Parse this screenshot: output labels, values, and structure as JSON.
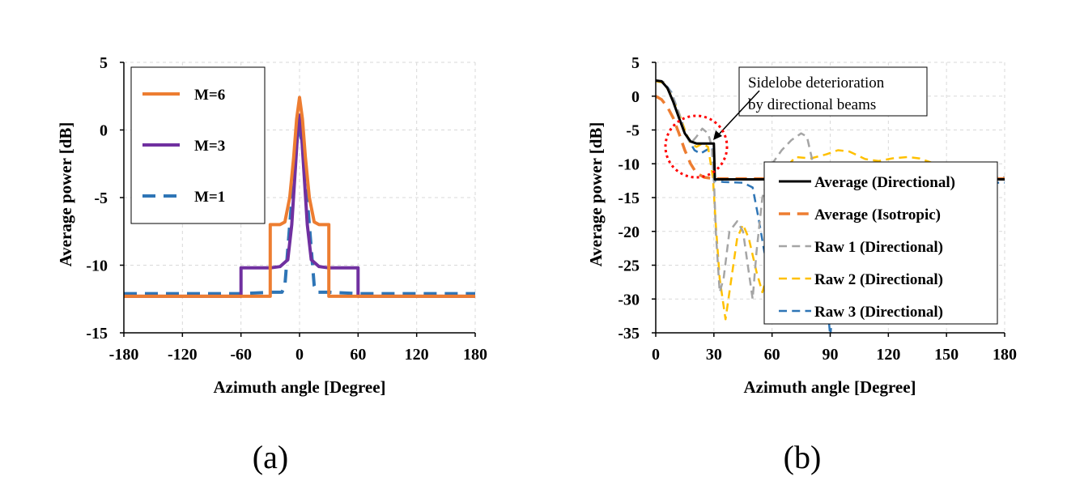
{
  "chart_data": [
    {
      "type": "line",
      "panel_caption": "(a)",
      "xlabel": "Azimuth angle [Degree]",
      "ylabel": "Average power [dB]",
      "xlim": [
        -180,
        180
      ],
      "ylim": [
        -15,
        5
      ],
      "xticks": [
        -180,
        -120,
        -60,
        0,
        60,
        120,
        180
      ],
      "yticks": [
        5,
        0,
        -5,
        -10,
        -15
      ],
      "grid": true,
      "legend_position": "top-left",
      "series": [
        {
          "name": "M=6",
          "color": "#ed7d31",
          "dash": "solid",
          "points": [
            [
              -180,
              -12.3
            ],
            [
              -60,
              -12.3
            ],
            [
              -30,
              -12.3
            ],
            [
              -30,
              -7
            ],
            [
              -20,
              -7
            ],
            [
              -15,
              -6.8
            ],
            [
              -10,
              -5
            ],
            [
              -6,
              -2
            ],
            [
              -3,
              0.8
            ],
            [
              0,
              2.4
            ],
            [
              3,
              0.8
            ],
            [
              6,
              -2
            ],
            [
              10,
              -5
            ],
            [
              15,
              -6.8
            ],
            [
              20,
              -7
            ],
            [
              30,
              -7
            ],
            [
              30,
              -12.3
            ],
            [
              60,
              -12.3
            ],
            [
              180,
              -12.3
            ]
          ]
        },
        {
          "name": "M=3",
          "color": "#7030a0",
          "dash": "solid",
          "points": [
            [
              -180,
              -12.3
            ],
            [
              -60,
              -12.3
            ],
            [
              -60,
              -10.2
            ],
            [
              -30,
              -10.2
            ],
            [
              -20,
              -10.1
            ],
            [
              -12,
              -9.6
            ],
            [
              -8,
              -7
            ],
            [
              -4,
              -2.5
            ],
            [
              -2,
              -0.2
            ],
            [
              0,
              1.1
            ],
            [
              2,
              -0.2
            ],
            [
              4,
              -2.5
            ],
            [
              8,
              -7
            ],
            [
              12,
              -9.6
            ],
            [
              20,
              -10.1
            ],
            [
              30,
              -10.2
            ],
            [
              60,
              -10.2
            ],
            [
              60,
              -12.3
            ],
            [
              180,
              -12.3
            ]
          ]
        },
        {
          "name": "M=1",
          "color": "#2e75b6",
          "dash": "dashed",
          "points": [
            [
              -180,
              -12.1
            ],
            [
              -60,
              -12.1
            ],
            [
              -30,
              -12
            ],
            [
              -18,
              -12
            ],
            [
              -15,
              -11.5
            ],
            [
              -10,
              -7
            ],
            [
              -6,
              -3.5
            ],
            [
              -3,
              -1
            ],
            [
              0,
              -0.1
            ],
            [
              3,
              -1
            ],
            [
              6,
              -3.5
            ],
            [
              10,
              -7
            ],
            [
              15,
              -11.5
            ],
            [
              18,
              -12
            ],
            [
              30,
              -12
            ],
            [
              60,
              -12.1
            ],
            [
              180,
              -12.1
            ]
          ]
        }
      ]
    },
    {
      "type": "line",
      "panel_caption": "(b)",
      "xlabel": "Azimuth angle [Degree]",
      "ylabel": "Average power [dB]",
      "xlim": [
        0,
        180
      ],
      "ylim": [
        -35,
        5
      ],
      "xticks": [
        0,
        30,
        60,
        90,
        120,
        150,
        180
      ],
      "yticks": [
        5,
        0,
        -5,
        -10,
        -15,
        -20,
        -25,
        -30,
        -35
      ],
      "grid": true,
      "legend_position": "right",
      "annotation": {
        "text_lines": [
          "Sidelobe deterioration",
          "by directional  beams"
        ],
        "target": [
          30,
          -7
        ]
      },
      "series": [
        {
          "name": "Average (Directional)",
          "color": "#000000",
          "dash": "solid",
          "width": 3,
          "points": [
            [
              0,
              2.3
            ],
            [
              3,
              2.2
            ],
            [
              6,
              1.2
            ],
            [
              9,
              -0.8
            ],
            [
              12,
              -3.2
            ],
            [
              15,
              -5.5
            ],
            [
              18,
              -6.7
            ],
            [
              21,
              -7
            ],
            [
              30,
              -7
            ],
            [
              30.5,
              -12.3
            ],
            [
              180,
              -12.3
            ]
          ]
        },
        {
          "name": "Average (Isotropic)",
          "color": "#ed7d31",
          "dash": "dashed",
          "width": 3.5,
          "points": [
            [
              0,
              0
            ],
            [
              3,
              -0.5
            ],
            [
              6,
              -1.6
            ],
            [
              9,
              -3.2
            ],
            [
              12,
              -5.5
            ],
            [
              15,
              -8
            ],
            [
              18,
              -10
            ],
            [
              21,
              -11.4
            ],
            [
              25,
              -12
            ],
            [
              30,
              -12.2
            ],
            [
              180,
              -12.2
            ]
          ]
        },
        {
          "name": "Raw 1 (Directional)",
          "color": "#a5a5a5",
          "dash": "dashed",
          "width": 2.5,
          "points": [
            [
              0,
              2.4
            ],
            [
              4,
              2.1
            ],
            [
              8,
              0.5
            ],
            [
              12,
              -2.5
            ],
            [
              15,
              -5.5
            ],
            [
              18,
              -7
            ],
            [
              21,
              -6
            ],
            [
              24,
              -4.8
            ],
            [
              27,
              -5.5
            ],
            [
              29,
              -7.5
            ],
            [
              30,
              -12
            ],
            [
              31,
              -20
            ],
            [
              33,
              -29
            ],
            [
              35,
              -27
            ],
            [
              38,
              -20
            ],
            [
              42,
              -18.5
            ],
            [
              45,
              -20
            ],
            [
              48,
              -26
            ],
            [
              50,
              -30
            ],
            [
              52,
              -23
            ],
            [
              55,
              -15
            ],
            [
              60,
              -10
            ],
            [
              65,
              -8
            ],
            [
              70,
              -6.5
            ],
            [
              75,
              -5.5
            ],
            [
              78,
              -6
            ],
            [
              82,
              -11
            ],
            [
              85,
              -20
            ],
            [
              88,
              -26
            ],
            [
              90,
              -28
            ],
            [
              93,
              -22
            ],
            [
              97,
              -15
            ],
            [
              101,
              -12.5
            ],
            [
              110,
              -12
            ],
            [
              180,
              -12
            ]
          ]
        },
        {
          "name": "Raw 2 (Directional)",
          "color": "#ffc000",
          "dash": "dashed",
          "width": 2.5,
          "points": [
            [
              0,
              2.2
            ],
            [
              4,
              2
            ],
            [
              8,
              0.2
            ],
            [
              12,
              -2.5
            ],
            [
              15,
              -5
            ],
            [
              18,
              -7
            ],
            [
              21,
              -7.5
            ],
            [
              24,
              -7
            ],
            [
              27,
              -7.5
            ],
            [
              29.5,
              -12
            ],
            [
              31,
              -19
            ],
            [
              33,
              -27
            ],
            [
              35,
              -31
            ],
            [
              36,
              -33
            ],
            [
              38,
              -29
            ],
            [
              42,
              -21
            ],
            [
              45,
              -19
            ],
            [
              48,
              -21
            ],
            [
              52,
              -26
            ],
            [
              55,
              -29
            ],
            [
              58,
              -26
            ],
            [
              62,
              -17
            ],
            [
              66,
              -11
            ],
            [
              72,
              -9
            ],
            [
              80,
              -9.2
            ],
            [
              88,
              -8.6
            ],
            [
              94,
              -8
            ],
            [
              100,
              -8.2
            ],
            [
              108,
              -9.3
            ],
            [
              115,
              -9.6
            ],
            [
              122,
              -9.2
            ],
            [
              130,
              -9
            ],
            [
              136,
              -9.2
            ],
            [
              142,
              -9.8
            ],
            [
              148,
              -11
            ],
            [
              153,
              -12
            ],
            [
              180,
              -12.3
            ]
          ]
        },
        {
          "name": "Raw 3 (Directional)",
          "color": "#2e75b6",
          "dash": "dashed",
          "width": 2.5,
          "points": [
            [
              0,
              2.3
            ],
            [
              4,
              2.1
            ],
            [
              8,
              0.6
            ],
            [
              12,
              -2.5
            ],
            [
              15,
              -5
            ],
            [
              17,
              -6.5
            ],
            [
              20,
              -8
            ],
            [
              23,
              -8.5
            ],
            [
              26,
              -8
            ],
            [
              29,
              -7.5
            ],
            [
              30,
              -12.5
            ],
            [
              35,
              -12.7
            ],
            [
              45,
              -12.8
            ],
            [
              50,
              -13.5
            ],
            [
              53,
              -18
            ],
            [
              56,
              -23
            ],
            [
              58,
              -25
            ],
            [
              60,
              -22
            ],
            [
              63,
              -17
            ],
            [
              66,
              -14
            ],
            [
              70,
              -13
            ],
            [
              80,
              -13.5
            ],
            [
              85,
              -20
            ],
            [
              88,
              -29
            ],
            [
              90,
              -35.5
            ],
            [
              92,
              -30
            ],
            [
              95,
              -20
            ],
            [
              100,
              -14
            ],
            [
              110,
              -13
            ],
            [
              120,
              -12.8
            ],
            [
              180,
              -12.8
            ]
          ]
        }
      ]
    }
  ]
}
